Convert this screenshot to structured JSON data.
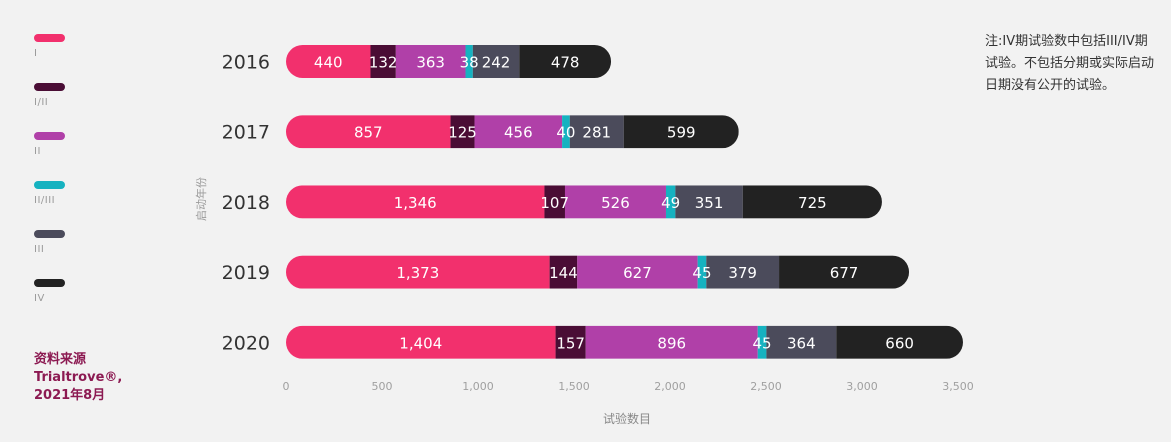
{
  "note": "注:IV期试验数中包括III/IV期试验。不包括分期或实际启动日期没有公开的试验。",
  "source": [
    "资料来源",
    "Trialtrove®,",
    "2021年8月"
  ],
  "legend": [
    {
      "label": "I",
      "color": "#f2306d"
    },
    {
      "label": "I/II",
      "color": "#4a0d35"
    },
    {
      "label": "II",
      "color": "#b040a8"
    },
    {
      "label": "II/III",
      "color": "#16b2c0"
    },
    {
      "label": "III",
      "color": "#4b4b5b"
    },
    {
      "label": "IV",
      "color": "#222222"
    }
  ],
  "chart_data": {
    "type": "bar",
    "orientation": "horizontal",
    "stacked": true,
    "categories": [
      "2016",
      "2017",
      "2018",
      "2019",
      "2020"
    ],
    "series": [
      {
        "name": "I",
        "color": "#f2306d",
        "values": [
          440,
          857,
          1346,
          1373,
          1404
        ],
        "labels": [
          "440",
          "857",
          "1,346",
          "1,373",
          "1,404"
        ]
      },
      {
        "name": "I/II",
        "color": "#4a0d35",
        "values": [
          132,
          125,
          107,
          144,
          157
        ],
        "labels": [
          "132",
          "125",
          "107",
          "144",
          "157"
        ]
      },
      {
        "name": "II",
        "color": "#b040a8",
        "values": [
          363,
          456,
          526,
          627,
          896
        ],
        "labels": [
          "363",
          "456",
          "526",
          "627",
          "896"
        ]
      },
      {
        "name": "II/III",
        "color": "#16b2c0",
        "values": [
          38,
          40,
          49,
          45,
          45
        ],
        "labels": [
          "38",
          "40",
          "49",
          "45",
          "45"
        ]
      },
      {
        "name": "III",
        "color": "#4b4b5b",
        "values": [
          242,
          281,
          351,
          379,
          364
        ],
        "labels": [
          "242",
          "281",
          "351",
          "379",
          "364"
        ]
      },
      {
        "name": "IV",
        "color": "#222222",
        "values": [
          478,
          599,
          725,
          677,
          660
        ],
        "labels": [
          "478",
          "599",
          "725",
          "677",
          "660"
        ]
      }
    ],
    "xticks": [
      "0",
      "500",
      "1,000",
      "1,500",
      "2,000",
      "2,500",
      "3,000",
      "3,500"
    ],
    "xtick_values": [
      0,
      500,
      1000,
      1500,
      2000,
      2500,
      3000,
      3500
    ],
    "xlim": [
      0,
      3500
    ],
    "xlabel": "试验数目",
    "ylabel": "启动年份",
    "grid": false
  }
}
